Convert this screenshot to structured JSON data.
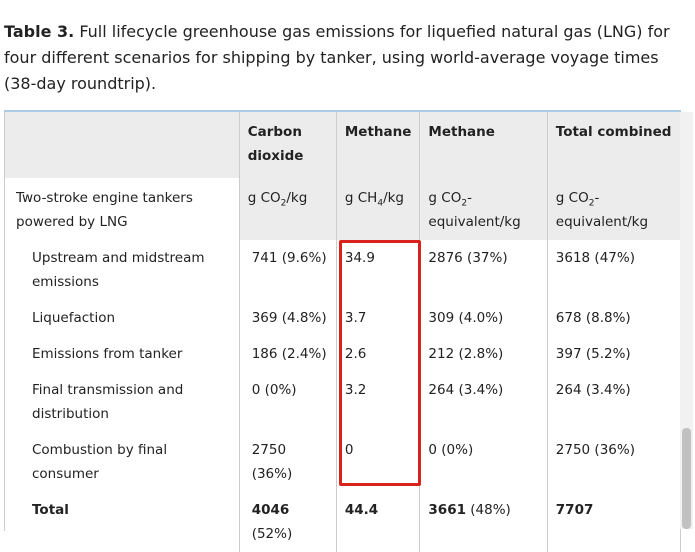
{
  "caption": {
    "label": "Table 3.",
    "text": "Full lifecycle greenhouse gas emissions for liquefied natural gas (LNG) for four different scenarios for shipping by tanker, using world-average voyage times (38-day roundtrip)."
  },
  "table": {
    "columns": [
      "Carbon dioxide",
      "Methane",
      "Methane",
      "Total combined"
    ],
    "row_label": "Two-stroke engine tankers powered by LNG",
    "units": [
      {
        "base": "g CO",
        "sub": "2",
        "suffix": "/kg"
      },
      {
        "base": "g CH",
        "sub": "4",
        "suffix": "/kg"
      },
      {
        "base": "g CO",
        "sub": "2",
        "suffix": "-equivalent/kg"
      },
      {
        "base": "g CO",
        "sub": "2",
        "suffix": "-equivalent/kg"
      }
    ],
    "rows": [
      {
        "label": "Upstream and midstream emissions",
        "cells": [
          "741 (9.6%)",
          "34.9",
          "2876 (37%)",
          "3618 (47%)"
        ]
      },
      {
        "label": "Liquefaction",
        "cells": [
          "369 (4.8%)",
          "3.7",
          "309 (4.0%)",
          "678 (8.8%)"
        ]
      },
      {
        "label": "Emissions from tanker",
        "cells": [
          "186 (2.4%)",
          "2.6",
          "212 (2.8%)",
          "397 (5.2%)"
        ]
      },
      {
        "label": "Final transmission and distribution",
        "cells": [
          "0 (0%)",
          "3.2",
          "264 (3.4%)",
          "264 (3.4%)"
        ]
      },
      {
        "label": "Combustion by final consumer",
        "cells": [
          "2750 (36%)",
          "0",
          "0 (0%)",
          "2750 (36%)"
        ]
      }
    ],
    "total": {
      "label": "Total",
      "cells": [
        {
          "bold": "4046",
          "rest": "(52%)"
        },
        {
          "bold": "44.4"
        },
        {
          "bold": "3661",
          "rest": "(48%)"
        },
        {
          "bold": "7707"
        }
      ]
    }
  }
}
